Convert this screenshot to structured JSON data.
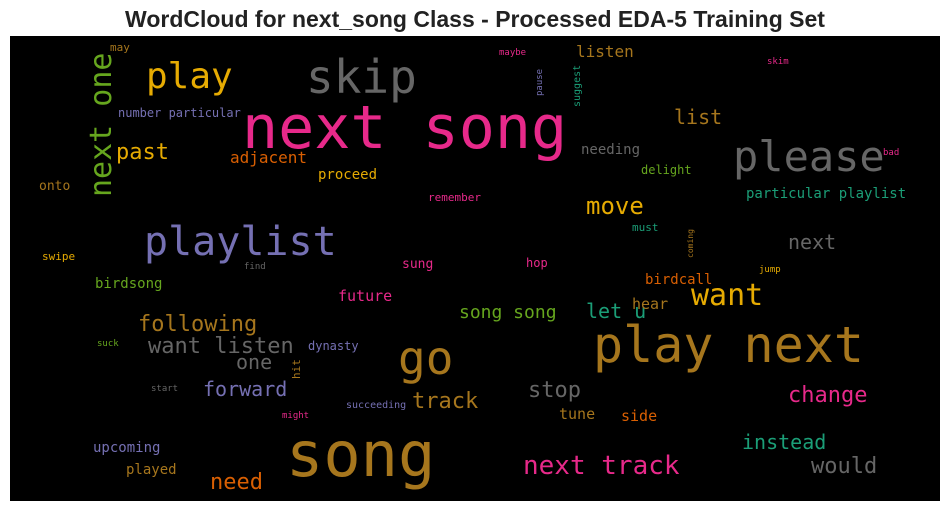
{
  "chart_data": {
    "type": "wordcloud",
    "title": "WordCloud for next_song Class - Processed EDA-5 Training Set",
    "background": "#000000",
    "words": [
      {
        "text": "song",
        "size": 62,
        "color": "#a6761d"
      },
      {
        "text": "next song",
        "size": 60,
        "color": "#e7298a"
      },
      {
        "text": "play next",
        "size": 50,
        "color": "#a6761d"
      },
      {
        "text": "skip",
        "size": 46,
        "color": "#666666"
      },
      {
        "text": "please",
        "size": 42,
        "color": "#666666"
      },
      {
        "text": "playlist",
        "size": 40,
        "color": "#7570b3"
      },
      {
        "text": "go",
        "size": 46,
        "color": "#a6761d"
      },
      {
        "text": "play",
        "size": 36,
        "color": "#e6ab02"
      },
      {
        "text": "next one",
        "size": 30,
        "color": "#66a61e"
      },
      {
        "text": "want",
        "size": 30,
        "color": "#e6ab02"
      },
      {
        "text": "next track",
        "size": 26,
        "color": "#e7298a"
      },
      {
        "text": "move",
        "size": 24,
        "color": "#e6ab02"
      },
      {
        "text": "past",
        "size": 22,
        "color": "#e6ab02"
      },
      {
        "text": "list",
        "size": 20,
        "color": "#a6761d"
      },
      {
        "text": "following",
        "size": 22,
        "color": "#a6761d"
      },
      {
        "text": "want listen",
        "size": 22,
        "color": "#666666"
      },
      {
        "text": "stop",
        "size": 22,
        "color": "#666666"
      },
      {
        "text": "need",
        "size": 22,
        "color": "#d95f02"
      },
      {
        "text": "would",
        "size": 22,
        "color": "#666666"
      },
      {
        "text": "change",
        "size": 22,
        "color": "#e7298a"
      },
      {
        "text": "track",
        "size": 22,
        "color": "#a6761d"
      },
      {
        "text": "next",
        "size": 20,
        "color": "#666666"
      },
      {
        "text": "let u",
        "size": 20,
        "color": "#1b9e77"
      },
      {
        "text": "instead",
        "size": 20,
        "color": "#1b9e77"
      },
      {
        "text": "forward",
        "size": 20,
        "color": "#7570b3"
      },
      {
        "text": "one",
        "size": 20,
        "color": "#666666"
      },
      {
        "text": "song song",
        "size": 18,
        "color": "#66a61e"
      },
      {
        "text": "adjacent",
        "size": 16,
        "color": "#d95f02"
      },
      {
        "text": "listen",
        "size": 16,
        "color": "#a6761d"
      },
      {
        "text": "future",
        "size": 15,
        "color": "#e7298a"
      },
      {
        "text": "particular playlist",
        "size": 14,
        "color": "#1b9e77"
      },
      {
        "text": "tune",
        "size": 15,
        "color": "#a6761d"
      },
      {
        "text": "side",
        "size": 15,
        "color": "#d95f02"
      },
      {
        "text": "hear",
        "size": 15,
        "color": "#a6761d"
      },
      {
        "text": "birdcall",
        "size": 14,
        "color": "#d95f02"
      },
      {
        "text": "upcoming",
        "size": 14,
        "color": "#7570b3"
      },
      {
        "text": "played",
        "size": 14,
        "color": "#a6761d"
      },
      {
        "text": "proceed",
        "size": 14,
        "color": "#e6ab02"
      },
      {
        "text": "needing",
        "size": 14,
        "color": "#666666"
      },
      {
        "text": "birdsong",
        "size": 14,
        "color": "#66a61e"
      },
      {
        "text": "sung",
        "size": 13,
        "color": "#e7298a"
      },
      {
        "text": "onto",
        "size": 13,
        "color": "#a6761d"
      },
      {
        "text": "dynasty",
        "size": 12,
        "color": "#7570b3"
      },
      {
        "text": "delight",
        "size": 12,
        "color": "#66a61e"
      },
      {
        "text": "number particular",
        "size": 12,
        "color": "#7570b3"
      },
      {
        "text": "hop",
        "size": 12,
        "color": "#e7298a"
      },
      {
        "text": "swipe",
        "size": 11,
        "color": "#e6ab02"
      },
      {
        "text": "remember",
        "size": 11,
        "color": "#e7298a"
      },
      {
        "text": "must",
        "size": 11,
        "color": "#1b9e77"
      },
      {
        "text": "succeeding",
        "size": 10,
        "color": "#7570b3"
      },
      {
        "text": "may",
        "size": 11,
        "color": "#a6761d"
      },
      {
        "text": "suggest",
        "size": 10,
        "color": "#1b9e77"
      },
      {
        "text": "pause",
        "size": 9,
        "color": "#7570b3"
      },
      {
        "text": "hit",
        "size": 11,
        "color": "#a6761d"
      },
      {
        "text": "jump",
        "size": 9,
        "color": "#e6ab02"
      },
      {
        "text": "suck",
        "size": 9,
        "color": "#66a61e"
      },
      {
        "text": "start",
        "size": 9,
        "color": "#666666"
      },
      {
        "text": "find",
        "size": 9,
        "color": "#666666"
      },
      {
        "text": "might",
        "size": 9,
        "color": "#e7298a"
      },
      {
        "text": "maybe",
        "size": 9,
        "color": "#e7298a"
      },
      {
        "text": "skim",
        "size": 9,
        "color": "#e7298a"
      },
      {
        "text": "bad",
        "size": 9,
        "color": "#e7298a"
      },
      {
        "text": "coming",
        "size": 8,
        "color": "#a6761d"
      }
    ]
  }
}
